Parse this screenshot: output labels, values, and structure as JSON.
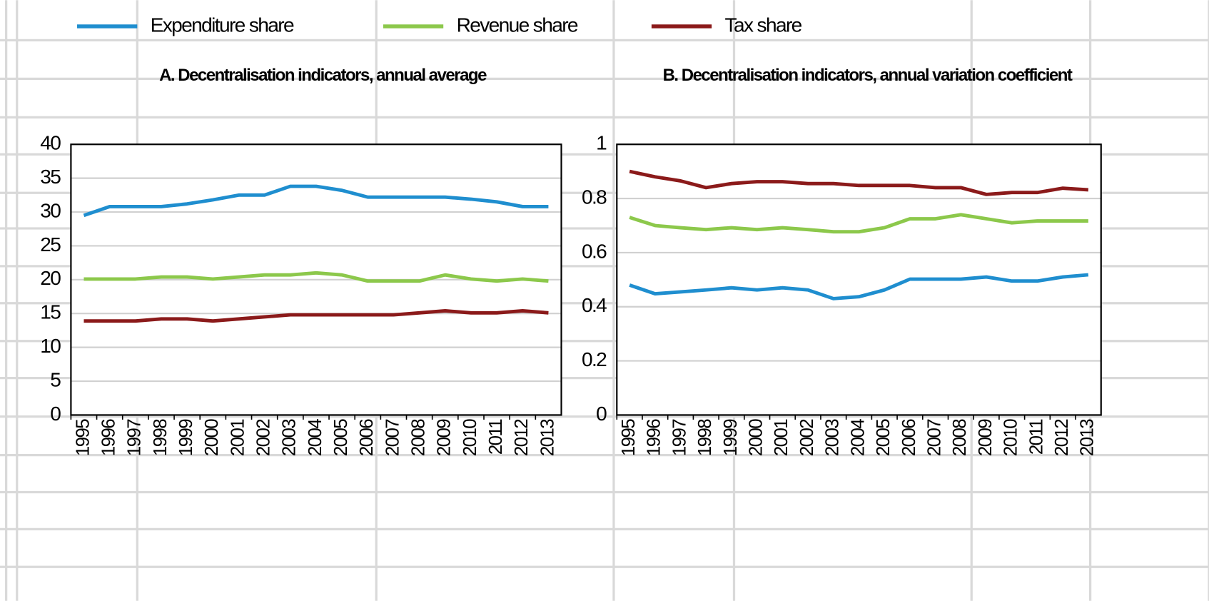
{
  "chart_data": [
    {
      "type": "line",
      "title": "A. Decentralisation indicators, annual average",
      "categories": [
        "1995",
        "1996",
        "1997",
        "1998",
        "1999",
        "2000",
        "2001",
        "2002",
        "2003",
        "2004",
        "2005",
        "2006",
        "2007",
        "2008",
        "2009",
        "2010",
        "2011",
        "2012",
        "2013"
      ],
      "series": [
        {
          "name": "Expenditure share",
          "color": "#1f8ecf",
          "values": [
            29.5,
            30.8,
            30.8,
            30.8,
            31.2,
            31.8,
            32.5,
            32.5,
            33.8,
            33.8,
            33.2,
            32.2,
            32.2,
            32.2,
            32.2,
            31.9,
            31.5,
            30.8,
            30.8
          ]
        },
        {
          "name": "Revenue share",
          "color": "#8cc84b",
          "values": [
            20.1,
            20.1,
            20.1,
            20.4,
            20.4,
            20.1,
            20.4,
            20.7,
            20.7,
            21.0,
            20.7,
            19.8,
            19.8,
            19.8,
            20.7,
            20.1,
            19.8,
            20.1,
            19.8
          ]
        },
        {
          "name": "Tax share",
          "color": "#8b1a1a",
          "values": [
            13.9,
            13.9,
            13.9,
            14.2,
            14.2,
            13.9,
            14.2,
            14.5,
            14.8,
            14.8,
            14.8,
            14.8,
            14.8,
            15.1,
            15.4,
            15.1,
            15.1,
            15.4,
            15.1
          ]
        }
      ],
      "ylim": [
        0,
        40
      ],
      "yticks": [
        0,
        5,
        10,
        15,
        20,
        25,
        30,
        35,
        40
      ],
      "grid": true
    },
    {
      "type": "line",
      "title": "B. Decentralisation indicators, annual variation coefficient",
      "categories": [
        "1995",
        "1996",
        "1997",
        "1998",
        "1999",
        "2000",
        "2001",
        "2002",
        "2003",
        "2004",
        "2005",
        "2006",
        "2007",
        "2008",
        "2009",
        "2010",
        "2011",
        "2012",
        "2013"
      ],
      "series": [
        {
          "name": "Expenditure share",
          "color": "#1f8ecf",
          "values": [
            0.48,
            0.448,
            0.455,
            0.462,
            0.47,
            0.462,
            0.47,
            0.462,
            0.43,
            0.437,
            0.462,
            0.502,
            0.502,
            0.502,
            0.51,
            0.495,
            0.495,
            0.51,
            0.518
          ]
        },
        {
          "name": "Revenue share",
          "color": "#8cc84b",
          "values": [
            0.73,
            0.7,
            0.692,
            0.685,
            0.692,
            0.685,
            0.692,
            0.685,
            0.677,
            0.677,
            0.692,
            0.725,
            0.725,
            0.74,
            0.725,
            0.71,
            0.717,
            0.717,
            0.717
          ]
        },
        {
          "name": "Tax share",
          "color": "#8b1a1a",
          "values": [
            0.9,
            0.88,
            0.865,
            0.84,
            0.855,
            0.862,
            0.862,
            0.855,
            0.855,
            0.848,
            0.848,
            0.848,
            0.84,
            0.84,
            0.815,
            0.822,
            0.822,
            0.838,
            0.832
          ]
        }
      ],
      "ylim": [
        0,
        1
      ],
      "yticks": [
        0,
        0.2,
        0.4,
        0.6,
        0.8,
        1
      ],
      "grid": true
    }
  ]
}
